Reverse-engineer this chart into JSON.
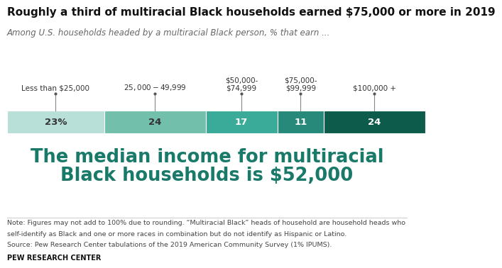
{
  "title": "Roughly a third of multiracial Black households earned $75,000 or more in 2019",
  "subtitle": "Among U.S. households headed by a multiracial Black person, % that earn ...",
  "categories": [
    "Less than $25,000",
    "$25,000-$49,999",
    "$50,000-\n$74,999",
    "$75,000-\n$99,999",
    "$100,000 +"
  ],
  "values": [
    23,
    24,
    17,
    11,
    24
  ],
  "labels": [
    "23%",
    "24",
    "17",
    "11",
    "24"
  ],
  "bar_colors": [
    "#b8dfd8",
    "#72bfac",
    "#3aab99",
    "#27897a",
    "#0d5c4b"
  ],
  "label_colors": [
    "#333333",
    "#333333",
    "#ffffff",
    "#ffffff",
    "#ffffff"
  ],
  "median_text_line1": "The median income for multiracial",
  "median_text_line2": "Black households is $52,000",
  "median_color": "#1a7a6a",
  "note_line1": "Note: Figures may not add to 100% due to rounding. “Multiracial Black” heads of household are household heads who",
  "note_line2": "self-identify as Black and one or more races in combination but do not identify as Hispanic or Latino.",
  "note_line3": "Source: Pew Research Center tabulations of the 2019 American Community Survey (1% IPUMS).",
  "source": "PEW RESEARCH CENTER",
  "background_color": "#ffffff",
  "title_fontsize": 11.0,
  "subtitle_fontsize": 8.5,
  "label_fontsize": 9.5,
  "median_fontsize": 18.5,
  "note_fontsize": 6.8
}
